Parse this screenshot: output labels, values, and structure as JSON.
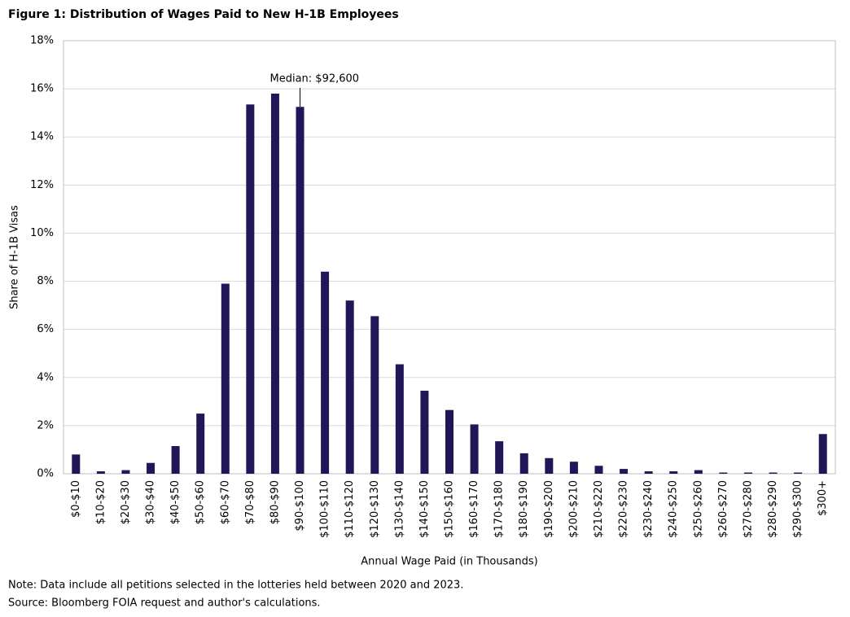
{
  "chart_data": {
    "type": "bar",
    "title": "Figure 1: Distribution of Wages Paid to New H-1B Employees",
    "x_label": "Annual Wage Paid (in Thousands)",
    "y_label": "Share of H-1B Visas",
    "annotation": "Median: $92,600",
    "notes": [
      "Note: Data include all petitions selected in the lotteries held between 2020 and 2023.",
      "Source: Bloomberg FOIA request and author's calculations."
    ],
    "categories": [
      "$0-$10",
      "$10-$20",
      "$20-$30",
      "$30-$40",
      "$40-$50",
      "$50-$60",
      "$60-$70",
      "$70-$80",
      "$80-$90",
      "$90-$100",
      "$100-$110",
      "$110-$120",
      "$120-$130",
      "$130-$140",
      "$140-$150",
      "$150-$160",
      "$160-$170",
      "$170-$180",
      "$180-$190",
      "$190-$200",
      "$200-$210",
      "$210-$220",
      "$220-$230",
      "$230-$240",
      "$240-$250",
      "$250-$260",
      "$260-$270",
      "$270-$280",
      "$280-$290",
      "$290-$300",
      "$300+"
    ],
    "values": [
      0.8,
      0.1,
      0.15,
      0.45,
      1.15,
      2.5,
      7.9,
      15.35,
      15.8,
      15.25,
      8.4,
      7.2,
      6.55,
      4.55,
      3.45,
      2.65,
      2.05,
      1.35,
      0.85,
      0.65,
      0.5,
      0.33,
      0.2,
      0.1,
      0.1,
      0.15,
      0.05,
      0.05,
      0.05,
      0.05,
      1.65
    ],
    "color": "#1f1757",
    "ylim": [
      0,
      18
    ],
    "yticks": [
      {
        "value": 0,
        "label": "0%"
      },
      {
        "value": 2,
        "label": "2%"
      },
      {
        "value": 4,
        "label": "4%"
      },
      {
        "value": 6,
        "label": "6%"
      },
      {
        "value": 8,
        "label": "8%"
      },
      {
        "value": 10,
        "label": "10%"
      },
      {
        "value": 12,
        "label": "12%"
      },
      {
        "value": 14,
        "label": "14%"
      },
      {
        "value": 16,
        "label": "16%"
      },
      {
        "value": 18,
        "label": "18%"
      }
    ],
    "grid": true
  }
}
